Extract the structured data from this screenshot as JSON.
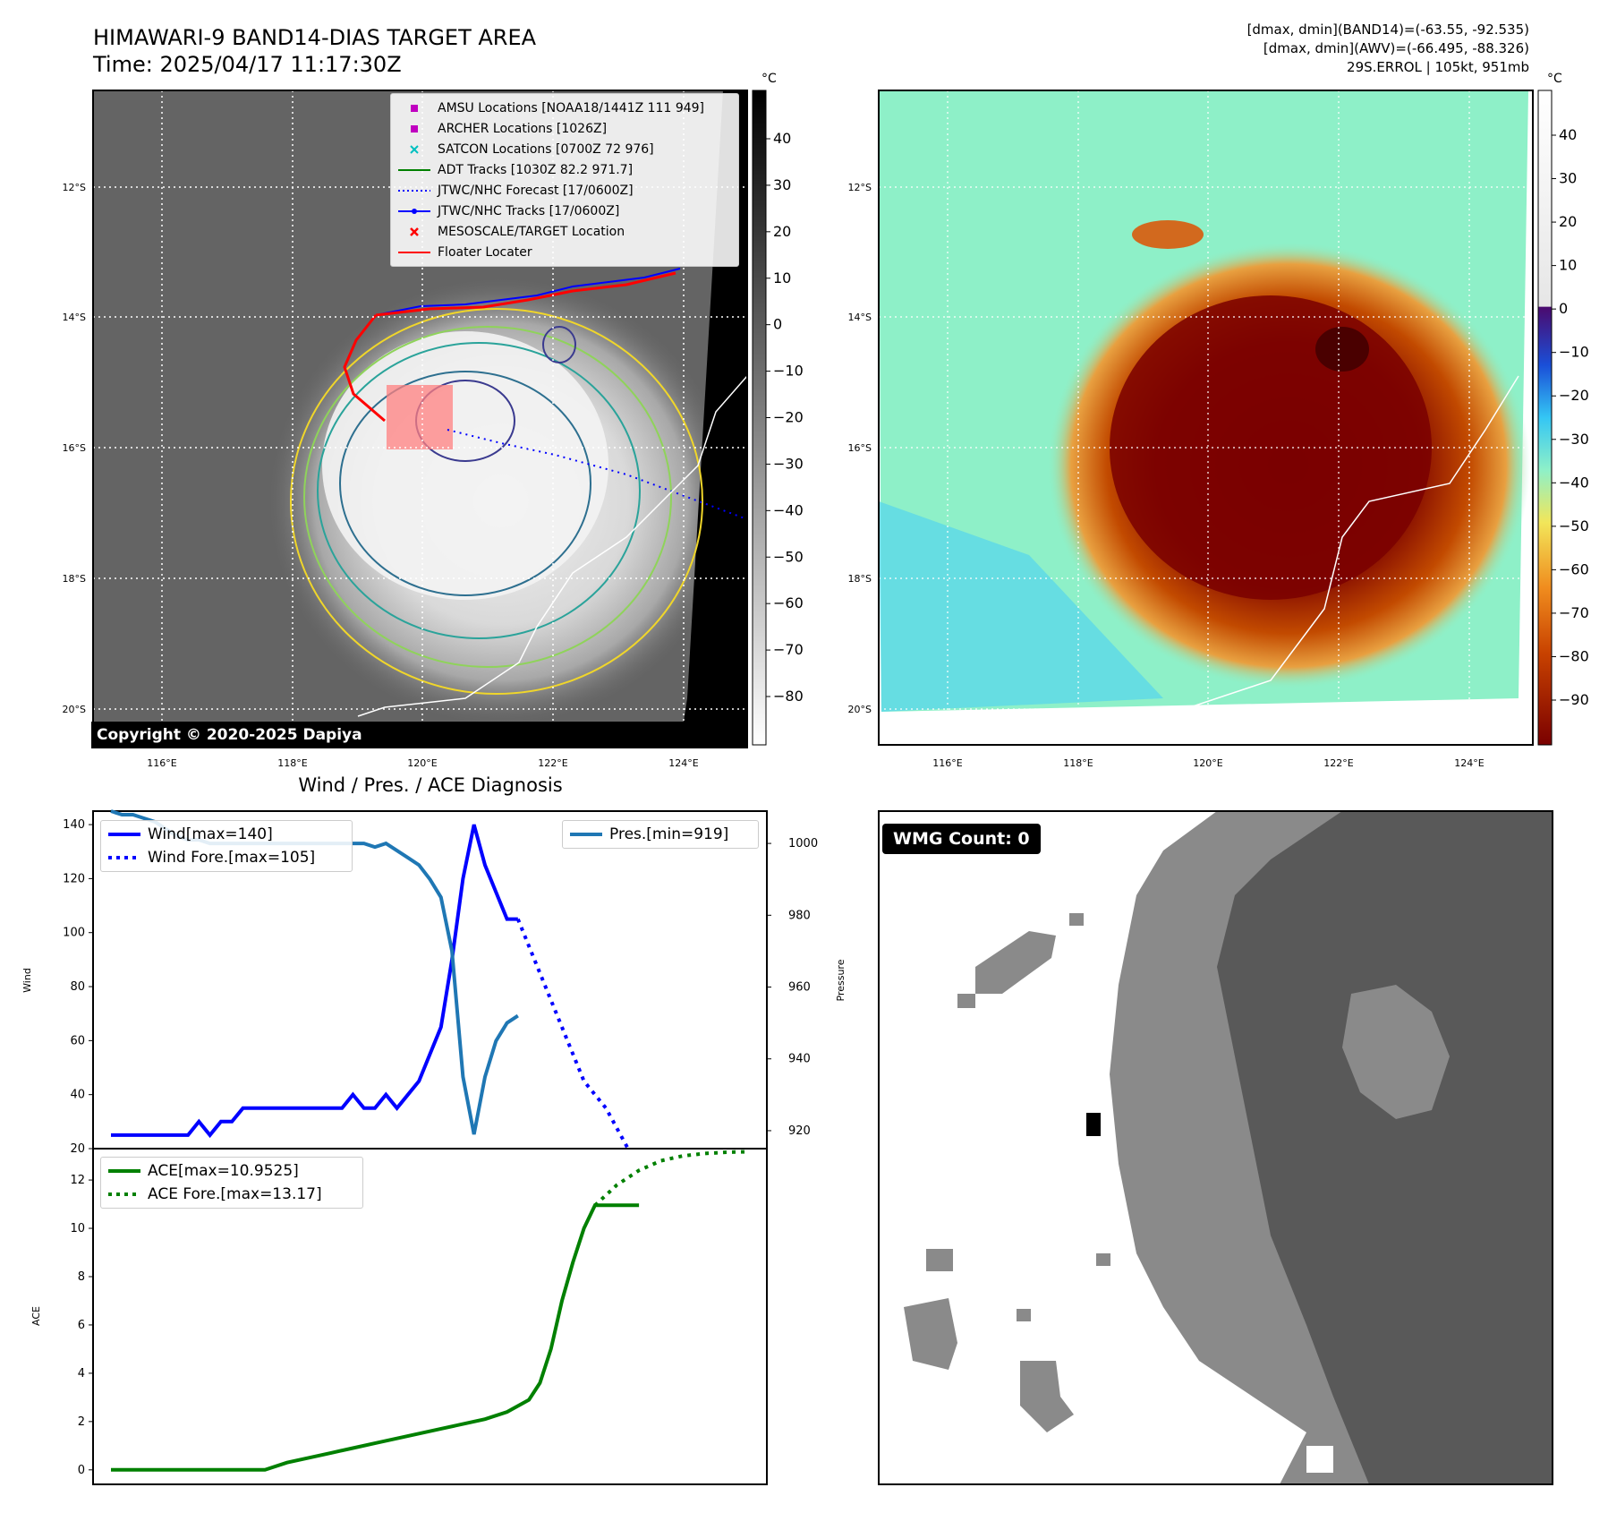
{
  "map_panel": {
    "title_line1": "HIMAWARI-9 BAND14-DIAS TARGET AREA",
    "title_line2": "Time: 2025/04/17 11:17:30Z",
    "lat_labels": [
      "12°S",
      "14°S",
      "16°S",
      "18°S",
      "20°S"
    ],
    "lon_labels": [
      "116°E",
      "118°E",
      "120°E",
      "122°E",
      "124°E"
    ],
    "colorbar_unit": "°C",
    "colorbar_ticks": [
      "40",
      "30",
      "20",
      "10",
      "0",
      "−10",
      "−20",
      "−30",
      "−40",
      "−50",
      "−60",
      "−70",
      "−80"
    ],
    "copyright": "Copyright © 2020-2025 Dapiya",
    "legend": [
      {
        "label": "AMSU Locations [NOAA18/1441Z 111 949]",
        "symbol": "square",
        "color": "#c000c0"
      },
      {
        "label": "ARCHER Locations [1026Z]",
        "symbol": "square",
        "color": "#c000c0"
      },
      {
        "label": "SATCON Locations [0700Z 72 976]",
        "symbol": "x",
        "color": "#00c0c0"
      },
      {
        "label": "ADT Tracks [1030Z 82.2 971.7]",
        "symbol": "line",
        "color": "#008000"
      },
      {
        "label": "JTWC/NHC Forecast [17/0600Z]",
        "symbol": "dotted",
        "color": "#0000ff"
      },
      {
        "label": "JTWC/NHC Tracks [17/0600Z]",
        "symbol": "line-dot",
        "color": "#0000ff"
      },
      {
        "label": "MESOSCALE/TARGET Location",
        "symbol": "x",
        "color": "#ff0000"
      },
      {
        "label": "Floater Locater",
        "symbol": "line",
        "color": "#ff0000"
      }
    ]
  },
  "awv_panel": {
    "info_line1": "[dmax, dmin](BAND14)=(-63.55, -92.535)",
    "info_line2": "[dmax, dmin](AWV)=(-66.495, -88.326)",
    "info_line3": "29S.ERROL | 105kt, 951mb",
    "colorbar_unit": "°C",
    "colorbar_ticks": [
      "40",
      "30",
      "20",
      "10",
      "0",
      "−10",
      "−20",
      "−30",
      "−40",
      "−50",
      "−60",
      "−70",
      "−80",
      "−90"
    ]
  },
  "wmg_panel": {
    "badge": "WMG Count: 0"
  },
  "chart_data": [
    {
      "type": "line",
      "title": "Wind / Pres. / ACE Diagnosis",
      "ylabel": "Wind",
      "ylim": [
        20,
        145
      ],
      "yticks": [
        20,
        40,
        60,
        80,
        100,
        120,
        140
      ],
      "series": [
        {
          "name": "Wind[max=140]",
          "color": "#0000ff",
          "style": "solid",
          "x": [
            0,
            1,
            2,
            3,
            4,
            5,
            6,
            7,
            8,
            9,
            10,
            11,
            12,
            13,
            14,
            15,
            16,
            17,
            18,
            19,
            20,
            21,
            22,
            23,
            24,
            25,
            26,
            27,
            28,
            29,
            30,
            31,
            32,
            33,
            34,
            35,
            36,
            37
          ],
          "values": [
            25,
            25,
            25,
            25,
            25,
            25,
            25,
            25,
            30,
            25,
            30,
            30,
            35,
            35,
            35,
            35,
            35,
            35,
            35,
            35,
            35,
            35,
            40,
            35,
            35,
            40,
            35,
            40,
            45,
            55,
            65,
            90,
            120,
            140,
            125,
            115,
            105,
            105
          ]
        },
        {
          "name": "Wind Fore.[max=105]",
          "color": "#0000ff",
          "style": "dotted",
          "x": [
            37,
            39,
            41,
            43,
            45,
            47
          ],
          "values": [
            105,
            85,
            65,
            45,
            35,
            20
          ]
        }
      ],
      "secondary_axis": {
        "ylabel": "Pressure",
        "ylim": [
          915,
          1009
        ],
        "yticks": [
          920,
          940,
          960,
          980,
          1000
        ],
        "series": [
          {
            "name": "Pres.[min=919]",
            "color": "#1f77b4",
            "style": "solid",
            "x": [
              0,
              1,
              2,
              3,
              4,
              5,
              6,
              7,
              8,
              9,
              10,
              11,
              12,
              13,
              14,
              15,
              16,
              17,
              18,
              19,
              20,
              21,
              22,
              23,
              24,
              25,
              26,
              27,
              28,
              29,
              30,
              31,
              32,
              33,
              34,
              35,
              36,
              37
            ],
            "values": [
              1009,
              1008,
              1008,
              1007,
              1006,
              1004,
              1002,
              1001,
              1001,
              1000,
              1000,
              1000,
              1000,
              1000,
              1000,
              1000,
              1000,
              1000,
              1000,
              1000,
              1000,
              1000,
              1000,
              1000,
              999,
              1000,
              998,
              996,
              994,
              990,
              985,
              970,
              935,
              919,
              935,
              945,
              950,
              952
            ]
          }
        ]
      },
      "legend": "upper-left / upper-right"
    },
    {
      "type": "line",
      "ylabel": "ACE",
      "ylim": [
        -0.6,
        13.3
      ],
      "yticks": [
        0,
        2,
        4,
        6,
        8,
        10,
        12
      ],
      "series": [
        {
          "name": "ACE[max=10.9525]",
          "color": "#008000",
          "style": "solid",
          "x": [
            0,
            2,
            4,
            6,
            8,
            10,
            12,
            14,
            16,
            18,
            20,
            22,
            24,
            26,
            28,
            30,
            32,
            34,
            36,
            38,
            39,
            40,
            41,
            42,
            43,
            44,
            45,
            46,
            47,
            48
          ],
          "values": [
            0,
            0,
            0,
            0,
            0,
            0,
            0,
            0,
            0.3,
            0.5,
            0.7,
            0.9,
            1.1,
            1.3,
            1.5,
            1.7,
            1.9,
            2.1,
            2.4,
            2.9,
            3.6,
            5.0,
            7.0,
            8.6,
            10.0,
            10.9525,
            10.9525,
            10.9525,
            10.9525,
            10.9525
          ]
        },
        {
          "name": "ACE Fore.[max=13.17]",
          "color": "#008000",
          "style": "dotted",
          "x": [
            44,
            46,
            48,
            50,
            52,
            54,
            56,
            58
          ],
          "values": [
            10.95,
            11.8,
            12.4,
            12.8,
            13.0,
            13.1,
            13.15,
            13.17
          ]
        }
      ],
      "legend": "upper-left"
    }
  ]
}
